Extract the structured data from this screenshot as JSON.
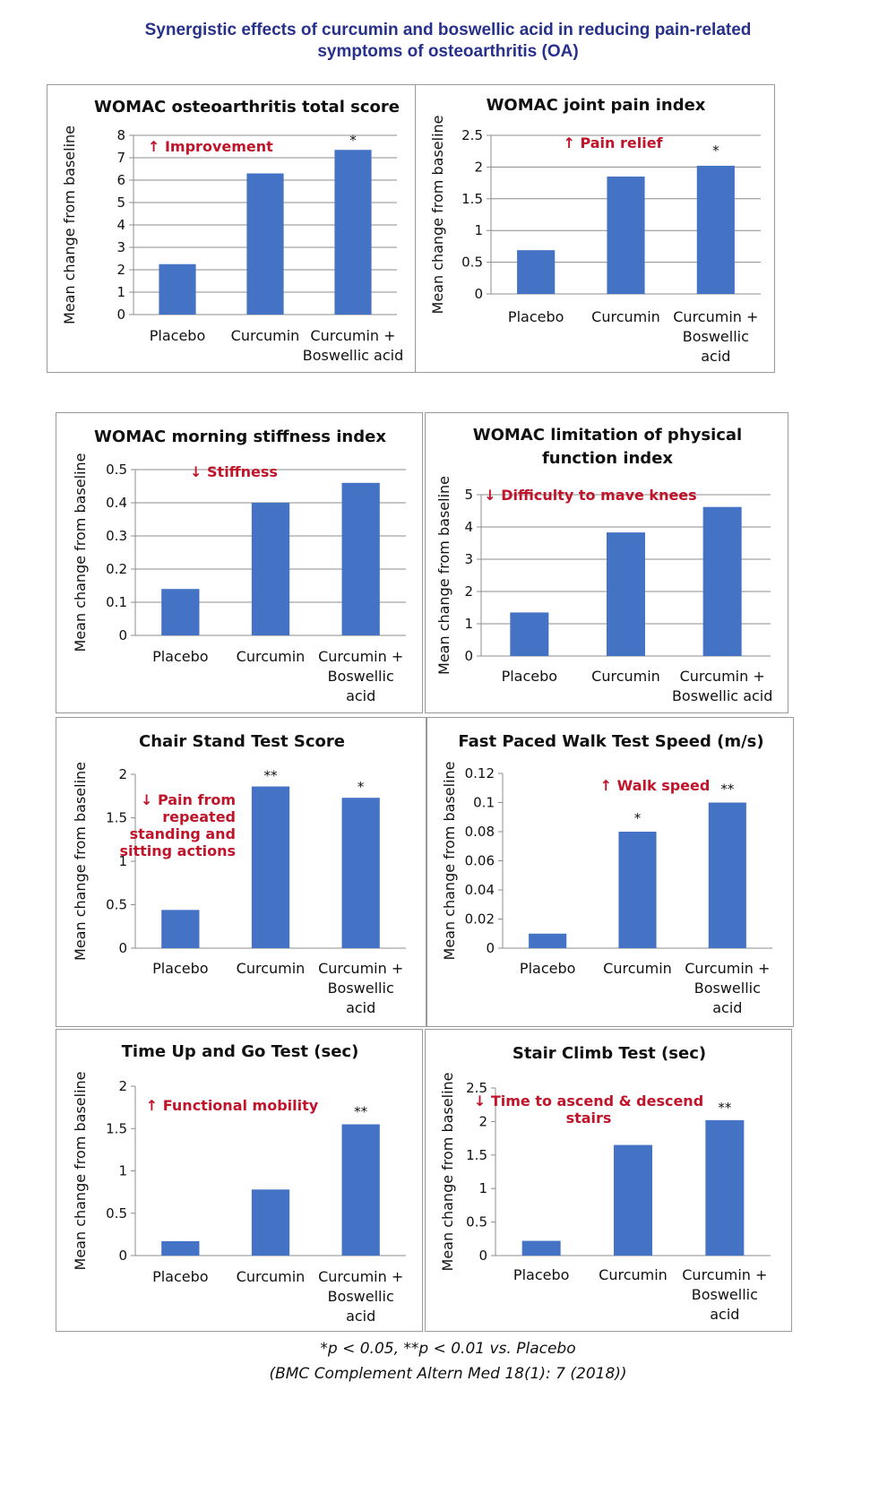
{
  "title_lines": [
    "Synergistic effects of curcumin and boswellic acid in reducing pain-related",
    "symptoms of osteoarthritis (OA)"
  ],
  "footnote_1": "*p < 0.05, **p < 0.01 vs. Placebo",
  "footnote_2": "(BMC Complement Altern Med 18(1): 7 (2018))",
  "colors": {
    "bar": "#4472c4",
    "annotation": "#c0142b",
    "title": "#27318b",
    "axis": "#8c8c8c"
  },
  "chart_data": [
    {
      "type": "bar",
      "title": "WOMAC osteoarthritis total score",
      "ylabel": "Mean change from baseline",
      "ylim": [
        0,
        8
      ],
      "yticks": [
        "0",
        "1",
        "2",
        "3",
        "4",
        "5",
        "6",
        "7",
        "8"
      ],
      "categories": [
        "Placebo",
        "Curcumin",
        "Curcumin + Boswellic acid"
      ],
      "category_lines": [
        [
          "Placebo"
        ],
        [
          "Curcumin"
        ],
        [
          "Curcumin +",
          "Boswellic acid"
        ]
      ],
      "values": [
        2.25,
        6.3,
        7.35
      ],
      "significance": [
        "",
        "",
        "*"
      ],
      "annotation": [
        "↑ Improvement"
      ],
      "grid": true,
      "legend": "none"
    },
    {
      "type": "bar",
      "title": "WOMAC joint pain index",
      "ylabel": "Mean change from baseline",
      "ylim": [
        0,
        2.5
      ],
      "yticks": [
        "0",
        "0.5",
        "1",
        "1.5",
        "2",
        "2.5"
      ],
      "categories": [
        "Placebo",
        "Curcumin",
        "Curcumin + Boswellic acid"
      ],
      "category_lines": [
        [
          "Placebo"
        ],
        [
          "Curcumin"
        ],
        [
          "Curcumin +",
          "Boswellic",
          "acid"
        ]
      ],
      "values": [
        0.69,
        1.85,
        2.02
      ],
      "significance": [
        "",
        "",
        "*"
      ],
      "annotation": [
        "↑ Pain relief"
      ],
      "grid": true,
      "legend": "none"
    },
    {
      "type": "bar",
      "title": "WOMAC morning stiffness index",
      "ylabel": "Mean change from baseline",
      "ylim": [
        0,
        0.5
      ],
      "yticks": [
        "0",
        "0.1",
        "0.2",
        "0.3",
        "0.4",
        "0.5"
      ],
      "categories": [
        "Placebo",
        "Curcumin",
        "Curcumin + Boswellic acid"
      ],
      "category_lines": [
        [
          "Placebo"
        ],
        [
          "Curcumin"
        ],
        [
          "Curcumin +",
          "Boswellic",
          "acid"
        ]
      ],
      "values": [
        0.14,
        0.4,
        0.46
      ],
      "significance": [
        "",
        "",
        ""
      ],
      "annotation": [
        "↓ Stiffness"
      ],
      "grid": true,
      "legend": "none"
    },
    {
      "type": "bar",
      "title": "WOMAC limitation of physical function index",
      "title_lines": [
        "WOMAC limitation of physical",
        "function index"
      ],
      "ylabel": "Mean change from baseline",
      "ylim": [
        0,
        5
      ],
      "yticks": [
        "0",
        "1",
        "2",
        "3",
        "4",
        "5"
      ],
      "categories": [
        "Placebo",
        "Curcumin",
        "Curcumin + Boswellic acid"
      ],
      "category_lines": [
        [
          "Placebo"
        ],
        [
          "Curcumin"
        ],
        [
          "Curcumin +",
          "Boswellic acid"
        ]
      ],
      "values": [
        1.35,
        3.83,
        4.62
      ],
      "significance": [
        "",
        "",
        ""
      ],
      "annotation": [
        "↓ Difficulty to mave knees"
      ],
      "grid": true,
      "legend": "none"
    },
    {
      "type": "bar",
      "title": "Chair Stand Test Score",
      "ylabel": "Mean change from baseline",
      "ylim": [
        0,
        2
      ],
      "yticks": [
        "0",
        "0.5",
        "1",
        "1.5",
        "2"
      ],
      "categories": [
        "Placebo",
        "Curcumin",
        "Curcumin + Boswellic acid"
      ],
      "category_lines": [
        [
          "Placebo"
        ],
        [
          "Curcumin"
        ],
        [
          "Curcumin +",
          "Boswellic",
          "acid"
        ]
      ],
      "values": [
        0.44,
        1.86,
        1.73
      ],
      "significance": [
        "",
        "**",
        "*"
      ],
      "annotation": [
        "↓ Pain from",
        "repeated",
        "standing and",
        "sitting actions"
      ],
      "grid": false,
      "legend": "none"
    },
    {
      "type": "bar",
      "title": "Fast Paced Walk Test Speed (m/s)",
      "ylabel": "Mean change from baseline",
      "ylim": [
        0,
        0.12
      ],
      "yticks": [
        "0",
        "0.02",
        "0.04",
        "0.06",
        "0.08",
        "0.1",
        "0.12"
      ],
      "categories": [
        "Placebo",
        "Curcumin",
        "Curcumin + Boswellic acid"
      ],
      "category_lines": [
        [
          "Placebo"
        ],
        [
          "Curcumin"
        ],
        [
          "Curcumin +",
          "Boswellic",
          "acid"
        ]
      ],
      "values": [
        0.01,
        0.08,
        0.1
      ],
      "significance": [
        "",
        "*",
        "**"
      ],
      "annotation": [
        "↑ Walk speed"
      ],
      "grid": false,
      "legend": "none"
    },
    {
      "type": "bar",
      "title": "Time Up and Go Test (sec)",
      "ylabel": "Mean change from baseline",
      "ylim": [
        0,
        2
      ],
      "yticks": [
        "0",
        "0.5",
        "1",
        "1.5",
        "2"
      ],
      "categories": [
        "Placebo",
        "Curcumin",
        "Curcumin + Boswellic acid"
      ],
      "category_lines": [
        [
          "Placebo"
        ],
        [
          "Curcumin"
        ],
        [
          "Curcumin +",
          "Boswellic",
          "acid"
        ]
      ],
      "values": [
        0.17,
        0.78,
        1.55
      ],
      "significance": [
        "",
        "",
        "**"
      ],
      "annotation": [
        "↑ Functional mobility"
      ],
      "grid": false,
      "legend": "none"
    },
    {
      "type": "bar",
      "title": "Stair Climb Test (sec)",
      "ylabel": "Mean change from baseline",
      "ylim": [
        0,
        2.5
      ],
      "yticks": [
        "0",
        "0.5",
        "1",
        "1.5",
        "2",
        "2.5"
      ],
      "categories": [
        "Placebo",
        "Curcumin",
        "Curcumin + Boswellic acid"
      ],
      "category_lines": [
        [
          "Placebo"
        ],
        [
          "Curcumin"
        ],
        [
          "Curcumin +",
          "Boswellic",
          "acid"
        ]
      ],
      "values": [
        0.22,
        1.65,
        2.02
      ],
      "significance": [
        "",
        "",
        "**"
      ],
      "annotation": [
        "↓ Time to ascend & descend",
        "stairs"
      ],
      "grid": false,
      "legend": "none"
    }
  ]
}
